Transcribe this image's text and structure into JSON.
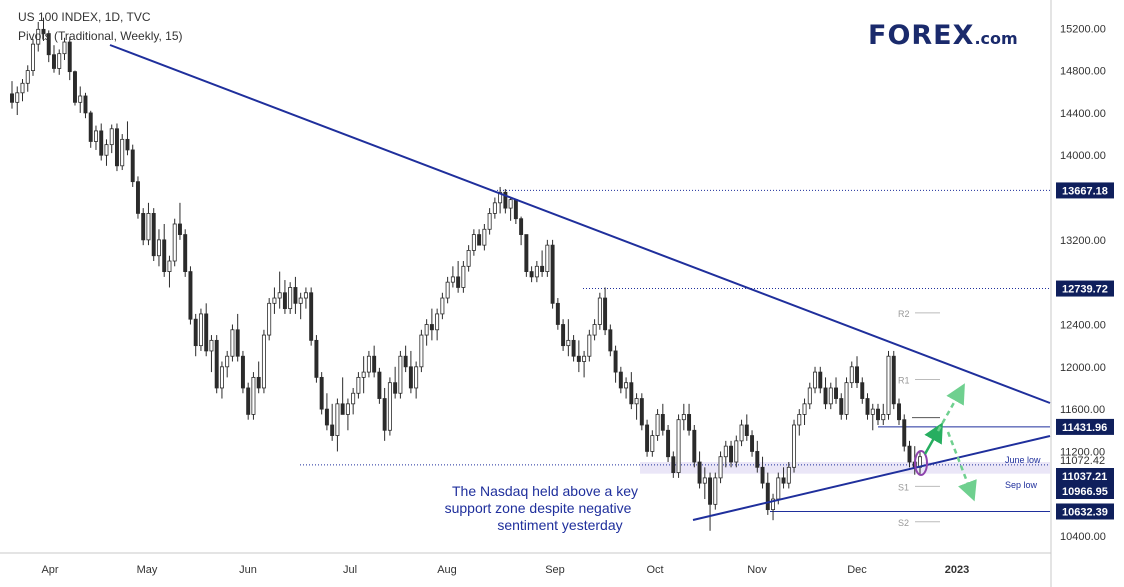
{
  "header": {
    "title": "US 100 INDEX, 1D, TVC",
    "indicator": "Pivots (Traditional, Weekly, 15)"
  },
  "logo": {
    "main": "FOREX",
    "suffix": ".com"
  },
  "colors": {
    "trendline": "#1f2f9c",
    "candle": "#2b2b2b",
    "price_label_bg": "#0f1f5c",
    "arrow_green": "#27ae60",
    "arrow_green_dashed": "#6fd08f",
    "highlight_circle": "#8e44ad",
    "support_zone": "#d8d2f0"
  },
  "annotation": {
    "lines": [
      "The Nasdaq held above a key",
      "support zone despite negative",
      "sentiment yesterday"
    ]
  },
  "chart_data": {
    "type": "candlestick",
    "y_axis": {
      "range": [
        10240,
        15420
      ],
      "ticks": [
        10400,
        10800,
        11200,
        11600,
        12000,
        12400,
        12800,
        13200,
        13600,
        14000,
        14400,
        14800,
        15200
      ],
      "tick_labels": [
        "10400.00",
        "",
        "11200.00",
        "11600.00",
        "12000.00",
        "12400.00",
        "",
        "13200.00",
        "",
        "14000.00",
        "14400.00",
        "14800.00",
        "15200.00"
      ]
    },
    "x_axis": {
      "labels": [
        "Apr",
        "May",
        "Jun",
        "Jul",
        "Aug",
        "Sep",
        "Oct",
        "Nov",
        "Dec",
        "2023"
      ]
    },
    "price_labels": [
      {
        "value": 13667.18,
        "text": "13667.18",
        "style": "dark"
      },
      {
        "value": 12739.72,
        "text": "12739.72",
        "style": "dark"
      },
      {
        "value": 11431.96,
        "text": "11431.96",
        "style": "dark"
      },
      {
        "value": 11072.42,
        "text": "11072.42",
        "style": "plain"
      },
      {
        "value": 11037.21,
        "text": "11037.21",
        "style": "dark"
      },
      {
        "value": 10966.95,
        "text": "10966.95",
        "style": "dark"
      },
      {
        "value": 10632.39,
        "text": "10632.39",
        "style": "dark"
      }
    ],
    "pivot_labels": [
      {
        "name": "R2",
        "value": 12510
      },
      {
        "name": "R1",
        "value": 11880
      },
      {
        "name": "S1",
        "value": 10870
      },
      {
        "name": "S2",
        "value": 10535
      }
    ],
    "level_labels": [
      {
        "text": "June low",
        "value": 11130
      },
      {
        "text": "Sep low",
        "value": 10890
      }
    ],
    "candles_ohlc": [
      [
        14580,
        14700,
        14440,
        14500
      ],
      [
        14500,
        14650,
        14380,
        14590
      ],
      [
        14590,
        14720,
        14510,
        14680
      ],
      [
        14680,
        14850,
        14600,
        14800
      ],
      [
        14800,
        15100,
        14750,
        15050
      ],
      [
        15050,
        15260,
        14980,
        15190
      ],
      [
        15190,
        15300,
        15080,
        15150
      ],
      [
        15150,
        15180,
        14880,
        14950
      ],
      [
        14950,
        15040,
        14780,
        14820
      ],
      [
        14820,
        15000,
        14760,
        14960
      ],
      [
        14960,
        15110,
        14900,
        15070
      ],
      [
        15070,
        15120,
        14710,
        14790
      ],
      [
        14790,
        14800,
        14470,
        14500
      ],
      [
        14500,
        14650,
        14400,
        14560
      ],
      [
        14560,
        14590,
        14350,
        14400
      ],
      [
        14400,
        14420,
        14070,
        14130
      ],
      [
        14130,
        14280,
        14050,
        14230
      ],
      [
        14230,
        14300,
        13950,
        14000
      ],
      [
        14000,
        14150,
        13900,
        14100
      ],
      [
        14100,
        14290,
        14020,
        14250
      ],
      [
        14250,
        14300,
        13850,
        13900
      ],
      [
        13900,
        14200,
        13860,
        14150
      ],
      [
        14150,
        14320,
        14000,
        14050
      ],
      [
        14050,
        14100,
        13700,
        13750
      ],
      [
        13750,
        13800,
        13400,
        13450
      ],
      [
        13450,
        13500,
        13150,
        13200
      ],
      [
        13200,
        13550,
        13150,
        13450
      ],
      [
        13450,
        13500,
        13000,
        13050
      ],
      [
        13050,
        13300,
        12950,
        13200
      ],
      [
        13200,
        13350,
        12850,
        12900
      ],
      [
        12900,
        13050,
        12750,
        13000
      ],
      [
        13000,
        13400,
        12950,
        13350
      ],
      [
        13350,
        13550,
        13200,
        13250
      ],
      [
        13250,
        13300,
        12850,
        12900
      ],
      [
        12900,
        12950,
        12400,
        12450
      ],
      [
        12450,
        12500,
        12100,
        12200
      ],
      [
        12200,
        12550,
        12150,
        12500
      ],
      [
        12500,
        12600,
        12100,
        12150
      ],
      [
        12150,
        12300,
        11950,
        12250
      ],
      [
        12250,
        12300,
        11750,
        11800
      ],
      [
        11800,
        12050,
        11700,
        12000
      ],
      [
        12000,
        12150,
        11900,
        12100
      ],
      [
        12100,
        12400,
        12050,
        12350
      ],
      [
        12350,
        12500,
        12050,
        12100
      ],
      [
        12100,
        12150,
        11750,
        11800
      ],
      [
        11800,
        11850,
        11500,
        11550
      ],
      [
        11550,
        11950,
        11500,
        11900
      ],
      [
        11900,
        12050,
        11750,
        11800
      ],
      [
        11800,
        12350,
        11750,
        12300
      ],
      [
        12300,
        12650,
        12250,
        12600
      ],
      [
        12600,
        12750,
        12500,
        12650
      ],
      [
        12650,
        12900,
        12550,
        12700
      ],
      [
        12700,
        12820,
        12500,
        12550
      ],
      [
        12550,
        12800,
        12500,
        12750
      ],
      [
        12750,
        12850,
        12500,
        12600
      ],
      [
        12600,
        12700,
        12450,
        12650
      ],
      [
        12650,
        12750,
        12550,
        12700
      ],
      [
        12700,
        12750,
        12200,
        12250
      ],
      [
        12250,
        12300,
        11850,
        11900
      ],
      [
        11900,
        11950,
        11550,
        11600
      ],
      [
        11600,
        11750,
        11400,
        11450
      ],
      [
        11450,
        11650,
        11300,
        11350
      ],
      [
        11350,
        11700,
        11200,
        11650
      ],
      [
        11650,
        11900,
        11550,
        11550
      ],
      [
        11550,
        11700,
        11400,
        11650
      ],
      [
        11650,
        11800,
        11550,
        11750
      ],
      [
        11750,
        11950,
        11700,
        11900
      ],
      [
        11900,
        12100,
        11750,
        11950
      ],
      [
        11950,
        12150,
        11900,
        12100
      ],
      [
        12100,
        12200,
        11900,
        11950
      ],
      [
        11950,
        11990,
        11650,
        11700
      ],
      [
        11700,
        11800,
        11300,
        11400
      ],
      [
        11400,
        11900,
        11350,
        11850
      ],
      [
        11850,
        12000,
        11700,
        11750
      ],
      [
        11750,
        12150,
        11700,
        12100
      ],
      [
        12100,
        12200,
        11950,
        12000
      ],
      [
        12000,
        12150,
        11750,
        11800
      ],
      [
        11800,
        12050,
        11700,
        12000
      ],
      [
        12000,
        12350,
        11950,
        12300
      ],
      [
        12300,
        12450,
        12200,
        12400
      ],
      [
        12400,
        12550,
        12250,
        12350
      ],
      [
        12350,
        12550,
        12250,
        12500
      ],
      [
        12500,
        12700,
        12450,
        12650
      ],
      [
        12650,
        12850,
        12600,
        12800
      ],
      [
        12800,
        12950,
        12750,
        12850
      ],
      [
        12850,
        13000,
        12700,
        12750
      ],
      [
        12750,
        13000,
        12700,
        12950
      ],
      [
        12950,
        13150,
        12900,
        13100
      ],
      [
        13100,
        13300,
        13050,
        13250
      ],
      [
        13250,
        13300,
        13150,
        13150
      ],
      [
        13150,
        13350,
        13100,
        13300
      ],
      [
        13300,
        13500,
        13250,
        13450
      ],
      [
        13450,
        13600,
        13400,
        13550
      ],
      [
        13550,
        13700,
        13450,
        13650
      ],
      [
        13650,
        13680,
        13450,
        13500
      ],
      [
        13500,
        13600,
        13380,
        13580
      ],
      [
        13580,
        13550,
        13350,
        13400
      ],
      [
        13400,
        13420,
        13150,
        13250
      ],
      [
        13250,
        13100,
        12850,
        12900
      ],
      [
        12900,
        12950,
        12800,
        12850
      ],
      [
        12850,
        13000,
        12800,
        12950
      ],
      [
        12950,
        13100,
        12850,
        12900
      ],
      [
        12900,
        13200,
        12850,
        13150
      ],
      [
        13150,
        13200,
        12550,
        12600
      ],
      [
        12600,
        12650,
        12350,
        12400
      ],
      [
        12400,
        12450,
        12150,
        12200
      ],
      [
        12200,
        12450,
        12100,
        12250
      ],
      [
        12250,
        12300,
        12050,
        12100
      ],
      [
        12100,
        12250,
        11950,
        12050
      ],
      [
        12050,
        12150,
        11900,
        12100
      ],
      [
        12100,
        12350,
        12050,
        12300
      ],
      [
        12300,
        12450,
        12250,
        12400
      ],
      [
        12400,
        12700,
        12350,
        12650
      ],
      [
        12650,
        12750,
        12300,
        12350
      ],
      [
        12350,
        12400,
        12100,
        12150
      ],
      [
        12150,
        12200,
        11850,
        11950
      ],
      [
        11950,
        12000,
        11750,
        11800
      ],
      [
        11800,
        11900,
        11700,
        11850
      ],
      [
        11850,
        11950,
        11600,
        11650
      ],
      [
        11650,
        11750,
        11500,
        11700
      ],
      [
        11700,
        11750,
        11400,
        11450
      ],
      [
        11450,
        11500,
        11150,
        11200
      ],
      [
        11200,
        11400,
        11150,
        11350
      ],
      [
        11350,
        11600,
        11300,
        11550
      ],
      [
        11550,
        11650,
        11350,
        11400
      ],
      [
        11400,
        11450,
        11100,
        11150
      ],
      [
        11150,
        11200,
        10950,
        11000
      ],
      [
        11000,
        11550,
        10950,
        11500
      ],
      [
        11500,
        11650,
        11400,
        11550
      ],
      [
        11550,
        11650,
        11350,
        11400
      ],
      [
        11400,
        11450,
        11050,
        11100
      ],
      [
        11100,
        11200,
        10850,
        10900
      ],
      [
        10900,
        11050,
        10750,
        10950
      ],
      [
        10950,
        11000,
        10450,
        10700
      ],
      [
        10700,
        11000,
        10650,
        10950
      ],
      [
        10950,
        11200,
        10900,
        11150
      ],
      [
        11150,
        11300,
        11050,
        11250
      ],
      [
        11250,
        11300,
        11050,
        11100
      ],
      [
        11100,
        11350,
        11050,
        11300
      ],
      [
        11300,
        11500,
        11250,
        11450
      ],
      [
        11450,
        11550,
        11300,
        11350
      ],
      [
        11350,
        11400,
        11150,
        11200
      ],
      [
        11200,
        11300,
        11000,
        11050
      ],
      [
        11050,
        11150,
        10850,
        10900
      ],
      [
        10900,
        11000,
        10600,
        10650
      ],
      [
        10650,
        10800,
        10550,
        10750
      ],
      [
        10750,
        11000,
        10700,
        10950
      ],
      [
        10950,
        11050,
        10850,
        10900
      ],
      [
        10900,
        11100,
        10850,
        11050
      ],
      [
        11050,
        11500,
        11000,
        11450
      ],
      [
        11450,
        11600,
        11350,
        11550
      ],
      [
        11550,
        11700,
        11450,
        11650
      ],
      [
        11650,
        11850,
        11600,
        11800
      ],
      [
        11800,
        12000,
        11750,
        11950
      ],
      [
        11950,
        12000,
        11750,
        11800
      ],
      [
        11800,
        11900,
        11600,
        11650
      ],
      [
        11650,
        11850,
        11600,
        11800
      ],
      [
        11800,
        11900,
        11650,
        11700
      ],
      [
        11700,
        11750,
        11500,
        11550
      ],
      [
        11550,
        11900,
        11500,
        11850
      ],
      [
        11850,
        12050,
        11800,
        12000
      ],
      [
        12000,
        12100,
        11800,
        11850
      ],
      [
        11850,
        11900,
        11650,
        11700
      ],
      [
        11700,
        11750,
        11500,
        11550
      ],
      [
        11550,
        11650,
        11400,
        11600
      ],
      [
        11600,
        11650,
        11450,
        11500
      ],
      [
        11500,
        11650,
        11450,
        11550
      ],
      [
        11550,
        12150,
        11500,
        12100
      ],
      [
        12100,
        12150,
        11600,
        11650
      ],
      [
        11650,
        11700,
        11450,
        11500
      ],
      [
        11500,
        11550,
        11200,
        11250
      ],
      [
        11250,
        11300,
        11050,
        11100
      ],
      [
        11100,
        11250,
        10980,
        11050
      ],
      [
        11050,
        11200,
        10980,
        11150
      ]
    ]
  }
}
